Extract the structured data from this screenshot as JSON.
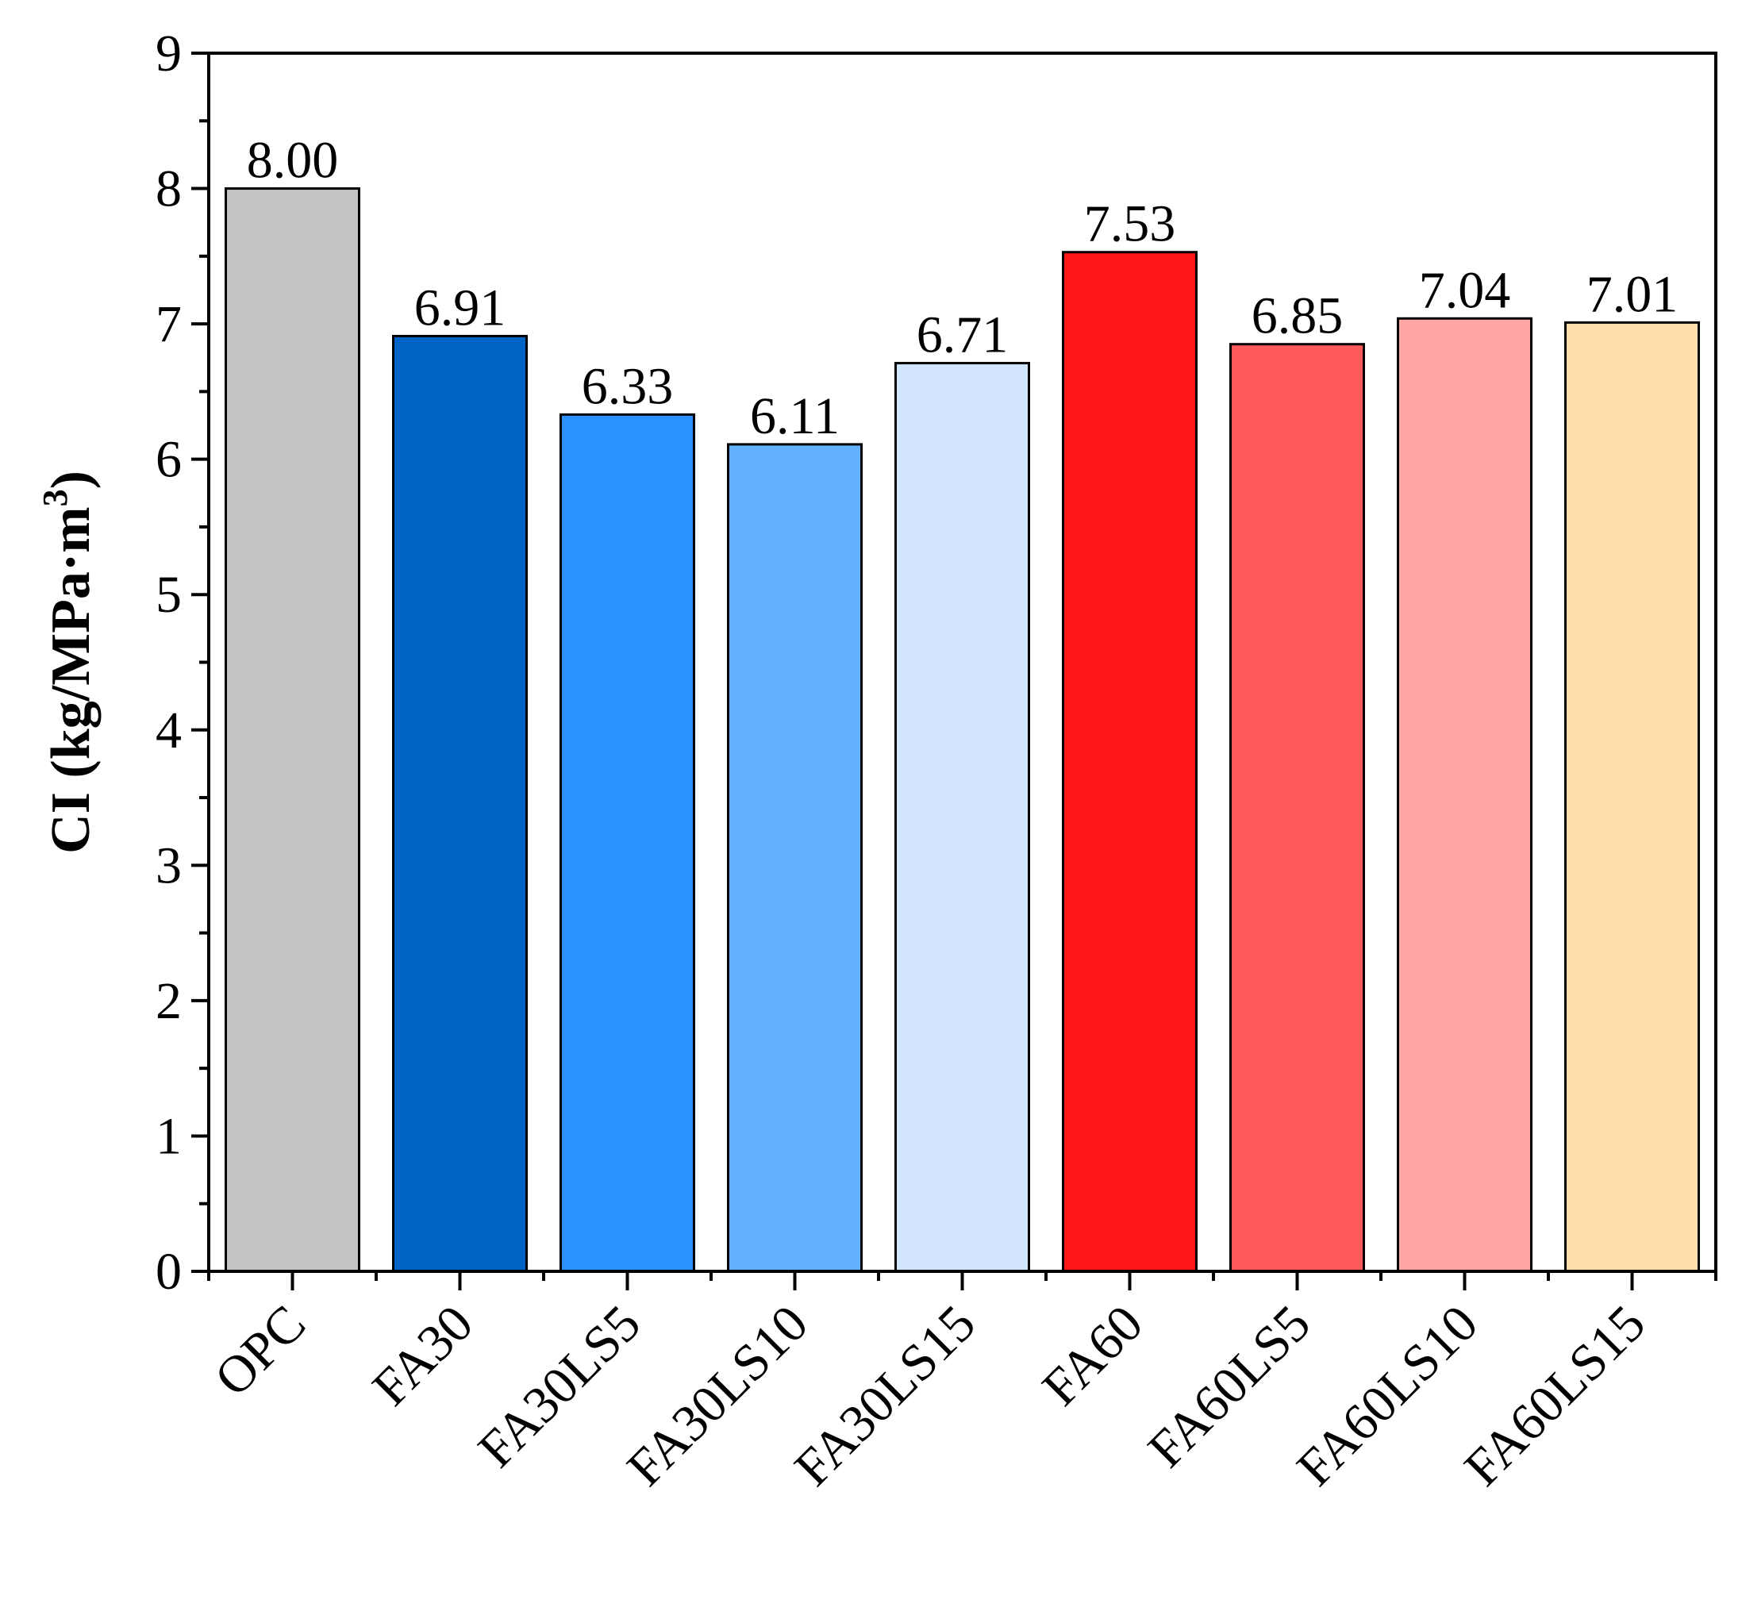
{
  "chart_data": {
    "type": "bar",
    "title": "",
    "xlabel": "",
    "ylabel": {
      "main": "CI (kg/MPa·m",
      "superscript": "3",
      "suffix": ")"
    },
    "ylim": [
      0,
      9
    ],
    "yticks": [
      "0",
      "1",
      "2",
      "3",
      "4",
      "5",
      "6",
      "7",
      "8",
      "9"
    ],
    "categories": [
      "OPC",
      "FA30",
      "FA30LS5",
      "FA30LS10",
      "FA30LS15",
      "FA60",
      "FA60LS5",
      "FA60LS10",
      "FA60LS15"
    ],
    "values": [
      8.0,
      6.91,
      6.33,
      6.11,
      6.71,
      7.53,
      6.85,
      7.04,
      7.01
    ],
    "value_labels": [
      "8.00",
      "6.91",
      "6.33",
      "6.11",
      "6.71",
      "7.53",
      "6.85",
      "7.04",
      "7.01"
    ],
    "colors": [
      "#c3c3c3",
      "#0063c6",
      "#2b91fe",
      "#62b2fe",
      "#d1e6fc",
      "#fe1515",
      "#fe5a5a",
      "#fea5a5",
      "#fedfac"
    ],
    "grid": false,
    "legend": "none"
  }
}
